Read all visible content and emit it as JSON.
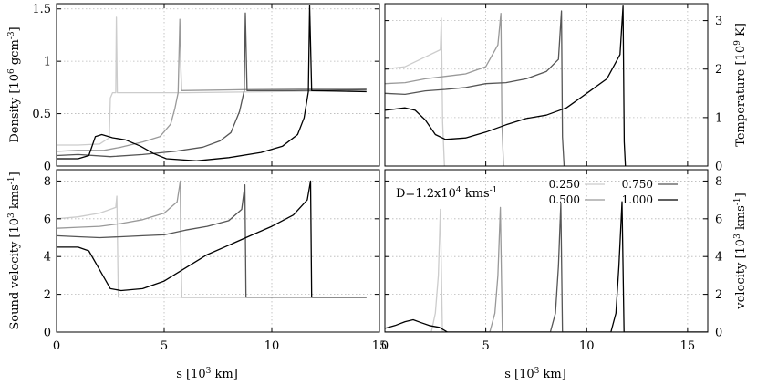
{
  "chart_data": [
    {
      "id": "density",
      "type": "line",
      "position": "top-left",
      "ylabel": {
        "text": "Density [10",
        "sup1": "6",
        "mid": " gcm",
        "sup2": "-3",
        "end": "]"
      },
      "xlim": [
        0,
        15
      ],
      "ylim": [
        0,
        1.55
      ],
      "xticks": [
        0,
        5,
        10,
        15
      ],
      "xtick_labels": [],
      "yticks": [
        0,
        0.5,
        1,
        1.5
      ],
      "ytick_labels": [
        "0",
        "0.5",
        "1",
        "1.5"
      ],
      "grid": true,
      "series": [
        {
          "time": "0.250",
          "points": [
            [
              0,
              0.2
            ],
            [
              1,
              0.2
            ],
            [
              2,
              0.21
            ],
            [
              2.45,
              0.27
            ],
            [
              2.5,
              0.65
            ],
            [
              2.6,
              0.7
            ],
            [
              2.75,
              0.7
            ],
            [
              2.78,
              1.42
            ],
            [
              2.82,
              0.7
            ],
            [
              6,
              0.7
            ],
            [
              10,
              0.71
            ],
            [
              14.4,
              0.72
            ]
          ]
        },
        {
          "time": "0.500",
          "points": [
            [
              0,
              0.14
            ],
            [
              1,
              0.15
            ],
            [
              2.2,
              0.15
            ],
            [
              3,
              0.18
            ],
            [
              4,
              0.23
            ],
            [
              4.8,
              0.28
            ],
            [
              5.3,
              0.4
            ],
            [
              5.5,
              0.55
            ],
            [
              5.65,
              0.7
            ],
            [
              5.73,
              1.4
            ],
            [
              5.8,
              0.72
            ],
            [
              9,
              0.73
            ],
            [
              14.4,
              0.74
            ]
          ]
        },
        {
          "time": "0.750",
          "points": [
            [
              0,
              0.1
            ],
            [
              1,
              0.11
            ],
            [
              2.5,
              0.09
            ],
            [
              4,
              0.11
            ],
            [
              5.5,
              0.14
            ],
            [
              6.8,
              0.18
            ],
            [
              7.6,
              0.24
            ],
            [
              8.1,
              0.32
            ],
            [
              8.5,
              0.52
            ],
            [
              8.72,
              0.72
            ],
            [
              8.77,
              1.46
            ],
            [
              8.85,
              0.72
            ],
            [
              11,
              0.72
            ],
            [
              14.4,
              0.73
            ]
          ]
        },
        {
          "time": "1.000",
          "points": [
            [
              0,
              0.07
            ],
            [
              1,
              0.07
            ],
            [
              1.5,
              0.1
            ],
            [
              1.8,
              0.28
            ],
            [
              2.1,
              0.3
            ],
            [
              2.6,
              0.27
            ],
            [
              3.2,
              0.25
            ],
            [
              3.9,
              0.19
            ],
            [
              4.5,
              0.12
            ],
            [
              5.1,
              0.07
            ],
            [
              6.5,
              0.05
            ],
            [
              8,
              0.08
            ],
            [
              9.5,
              0.13
            ],
            [
              10.5,
              0.19
            ],
            [
              11.2,
              0.3
            ],
            [
              11.5,
              0.46
            ],
            [
              11.7,
              0.71
            ],
            [
              11.76,
              1.53
            ],
            [
              11.85,
              0.72
            ],
            [
              14.4,
              0.71
            ]
          ]
        }
      ]
    },
    {
      "id": "temperature",
      "type": "line",
      "position": "top-right",
      "ylabel": {
        "text": "Temperature [10",
        "sup1": "9",
        "mid": " K]",
        "sup2": "",
        "end": ""
      },
      "xlim": [
        0,
        16
      ],
      "ylim": [
        0,
        3.35
      ],
      "xticks": [
        0,
        5,
        10,
        15
      ],
      "xtick_labels": [],
      "yticks": [
        0,
        1,
        2,
        3
      ],
      "ytick_labels": [
        "0",
        "1",
        "2",
        "3"
      ],
      "grid": true,
      "series": [
        {
          "time": "0.250",
          "points": [
            [
              0,
              2
            ],
            [
              1,
              2.05
            ],
            [
              2,
              2.25
            ],
            [
              2.75,
              2.4
            ],
            [
              2.8,
              3.05
            ],
            [
              2.86,
              0.9
            ],
            [
              2.95,
              0
            ]
          ]
        },
        {
          "time": "0.500",
          "points": [
            [
              0,
              1.7
            ],
            [
              1,
              1.72
            ],
            [
              2,
              1.8
            ],
            [
              3,
              1.85
            ],
            [
              4,
              1.9
            ],
            [
              5,
              2.05
            ],
            [
              5.6,
              2.5
            ],
            [
              5.75,
              3.15
            ],
            [
              5.8,
              0.9
            ],
            [
              5.88,
              0
            ]
          ]
        },
        {
          "time": "0.750",
          "points": [
            [
              0,
              1.5
            ],
            [
              1,
              1.48
            ],
            [
              2,
              1.55
            ],
            [
              3,
              1.58
            ],
            [
              4,
              1.62
            ],
            [
              5,
              1.7
            ],
            [
              6,
              1.72
            ],
            [
              7,
              1.8
            ],
            [
              8,
              1.95
            ],
            [
              8.6,
              2.2
            ],
            [
              8.75,
              3.2
            ],
            [
              8.8,
              0.6
            ],
            [
              8.88,
              0
            ]
          ]
        },
        {
          "time": "1.000",
          "points": [
            [
              0,
              1.15
            ],
            [
              1,
              1.2
            ],
            [
              1.5,
              1.15
            ],
            [
              2,
              0.95
            ],
            [
              2.5,
              0.65
            ],
            [
              3,
              0.55
            ],
            [
              4,
              0.58
            ],
            [
              5,
              0.7
            ],
            [
              6,
              0.85
            ],
            [
              7,
              0.98
            ],
            [
              8,
              1.05
            ],
            [
              9,
              1.2
            ],
            [
              10,
              1.5
            ],
            [
              11,
              1.8
            ],
            [
              11.65,
              2.3
            ],
            [
              11.8,
              3.3
            ],
            [
              11.86,
              0.5
            ],
            [
              11.92,
              0
            ]
          ]
        }
      ]
    },
    {
      "id": "sound-velocity",
      "type": "line",
      "position": "bottom-left",
      "ylabel": {
        "text": "Sound velocity [10",
        "sup1": "3",
        "mid": " kms",
        "sup2": "-1",
        "end": "]"
      },
      "xlabel": {
        "text": "s [10",
        "sup1": "3",
        "end": " km]"
      },
      "xlim": [
        0,
        15
      ],
      "ylim": [
        0,
        8.6
      ],
      "xticks": [
        0,
        5,
        10,
        15
      ],
      "xtick_labels": [
        "0",
        "5",
        "10",
        "15"
      ],
      "yticks": [
        0,
        2,
        4,
        6,
        8
      ],
      "ytick_labels": [
        "0",
        "2",
        "4",
        "6",
        "8"
      ],
      "grid": true,
      "series": [
        {
          "time": "0.250",
          "points": [
            [
              0,
              6
            ],
            [
              1,
              6.1
            ],
            [
              2,
              6.3
            ],
            [
              2.75,
              6.6
            ],
            [
              2.8,
              7.2
            ],
            [
              2.87,
              1.85
            ],
            [
              6,
              1.85
            ],
            [
              14.4,
              1.85
            ]
          ]
        },
        {
          "time": "0.500",
          "points": [
            [
              0,
              5.5
            ],
            [
              1,
              5.55
            ],
            [
              2,
              5.6
            ],
            [
              3,
              5.75
            ],
            [
              4,
              5.95
            ],
            [
              5,
              6.3
            ],
            [
              5.6,
              6.9
            ],
            [
              5.75,
              8
            ],
            [
              5.8,
              1.85
            ],
            [
              14.4,
              1.85
            ]
          ]
        },
        {
          "time": "0.750",
          "points": [
            [
              0,
              5.1
            ],
            [
              1,
              5.05
            ],
            [
              2,
              5
            ],
            [
              3,
              5.05
            ],
            [
              4,
              5.1
            ],
            [
              5,
              5.15
            ],
            [
              6,
              5.4
            ],
            [
              7,
              5.6
            ],
            [
              8,
              5.9
            ],
            [
              8.6,
              6.5
            ],
            [
              8.75,
              7.8
            ],
            [
              8.8,
              1.85
            ],
            [
              14.4,
              1.85
            ]
          ]
        },
        {
          "time": "1.000",
          "points": [
            [
              0,
              4.5
            ],
            [
              1,
              4.5
            ],
            [
              1.5,
              4.3
            ],
            [
              2,
              3.3
            ],
            [
              2.5,
              2.3
            ],
            [
              3,
              2.2
            ],
            [
              4,
              2.3
            ],
            [
              5,
              2.7
            ],
            [
              6,
              3.4
            ],
            [
              7,
              4.1
            ],
            [
              8,
              4.6
            ],
            [
              9,
              5.1
            ],
            [
              10,
              5.6
            ],
            [
              11,
              6.2
            ],
            [
              11.65,
              7
            ],
            [
              11.8,
              8
            ],
            [
              11.85,
              1.85
            ],
            [
              14.4,
              1.85
            ]
          ]
        }
      ]
    },
    {
      "id": "velocity",
      "type": "line",
      "position": "bottom-right",
      "ylabel": {
        "text": "velocity [10",
        "sup1": "3",
        "mid": " kms",
        "sup2": "-1",
        "end": "]"
      },
      "xlabel": {
        "text": "s [10",
        "sup1": "3",
        "end": " km]"
      },
      "xlim": [
        0,
        16
      ],
      "ylim": [
        0,
        8.6
      ],
      "xticks": [
        0,
        5,
        10,
        15
      ],
      "xtick_labels": [
        "0",
        "5",
        "10",
        "15"
      ],
      "yticks": [
        0,
        2,
        4,
        6,
        8
      ],
      "ytick_labels": [
        "0",
        "2",
        "4",
        "6",
        "8"
      ],
      "grid": true,
      "annotation": {
        "text": "D=1.2x10",
        "sup1": "4",
        "mid": " kms",
        "sup2": "-1",
        "end": ""
      },
      "series": [
        {
          "time": "0.250",
          "points": [
            [
              0,
              0
            ],
            [
              2.3,
              0
            ],
            [
              2.5,
              1
            ],
            [
              2.65,
              3
            ],
            [
              2.75,
              6.5
            ],
            [
              2.85,
              0
            ],
            [
              16,
              0
            ]
          ]
        },
        {
          "time": "0.500",
          "points": [
            [
              0,
              0
            ],
            [
              5.2,
              0
            ],
            [
              5.45,
              1
            ],
            [
              5.6,
              3
            ],
            [
              5.72,
              6.6
            ],
            [
              5.82,
              0
            ],
            [
              16,
              0
            ]
          ]
        },
        {
          "time": "0.750",
          "points": [
            [
              0,
              0
            ],
            [
              8.2,
              0
            ],
            [
              8.45,
              1
            ],
            [
              8.6,
              3.5
            ],
            [
              8.72,
              6.8
            ],
            [
              8.8,
              0
            ],
            [
              16,
              0
            ]
          ]
        },
        {
          "time": "1.000",
          "points": [
            [
              0,
              0.2
            ],
            [
              0.5,
              0.35
            ],
            [
              1,
              0.55
            ],
            [
              1.4,
              0.65
            ],
            [
              1.8,
              0.5
            ],
            [
              2.2,
              0.35
            ],
            [
              2.7,
              0.25
            ],
            [
              3.1,
              0
            ],
            [
              11.2,
              0
            ],
            [
              11.45,
              1
            ],
            [
              11.6,
              3.5
            ],
            [
              11.75,
              6.9
            ],
            [
              11.85,
              0
            ],
            [
              16,
              0
            ]
          ]
        }
      ]
    }
  ],
  "legend": {
    "position": "bottom-right",
    "entries": [
      {
        "label": "0.250",
        "color": "#cccccc"
      },
      {
        "label": "0.750",
        "color": "#555555"
      },
      {
        "label": "0.500",
        "color": "#999999"
      },
      {
        "label": "1.000",
        "color": "#000000"
      }
    ]
  },
  "series_colors": {
    "0.250": "#cccccc",
    "0.500": "#999999",
    "0.750": "#555555",
    "1.000": "#000000"
  }
}
